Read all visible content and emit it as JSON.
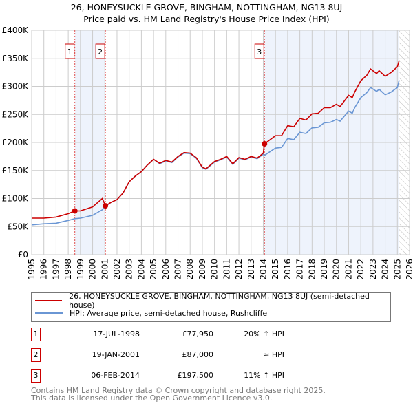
{
  "title": "26, HONEYSUCKLE GROVE, BINGHAM, NOTTINGHAM, NG13 8UJ",
  "subtitle": "Price paid vs. HM Land Registry's House Price Index (HPI)",
  "chart_data": {
    "type": "line",
    "title": "26, HONEYSUCKLE GROVE, BINGHAM, NOTTINGHAM, NG13 8UJ",
    "subtitle": "Price paid vs. HM Land Registry's House Price Index (HPI)",
    "xlim": [
      1995,
      2026
    ],
    "ylim": [
      0,
      400000
    ],
    "xticks": [
      "1995",
      "1996",
      "1997",
      "1998",
      "1999",
      "2000",
      "2001",
      "2002",
      "2003",
      "2004",
      "2005",
      "2006",
      "2007",
      "2008",
      "2009",
      "2010",
      "2011",
      "2012",
      "2013",
      "2014",
      "2015",
      "2016",
      "2017",
      "2018",
      "2019",
      "2020",
      "2021",
      "2022",
      "2023",
      "2024",
      "2025",
      "2026"
    ],
    "yticks": [
      {
        "v": 0,
        "label": "£0"
      },
      {
        "v": 50000,
        "label": "£50K"
      },
      {
        "v": 100000,
        "label": "£100K"
      },
      {
        "v": 150000,
        "label": "£150K"
      },
      {
        "v": 200000,
        "label": "£200K"
      },
      {
        "v": 250000,
        "label": "£250K"
      },
      {
        "v": 300000,
        "label": "£300K"
      },
      {
        "v": 350000,
        "label": "£350K"
      },
      {
        "v": 400000,
        "label": "£400K"
      }
    ],
    "grid": true,
    "shaded": [
      [
        1998.54,
        2001.05
      ],
      [
        2014.1,
        2025.1
      ]
    ],
    "hatched_from": 2025.1,
    "series": [
      {
        "name": "26, HONEYSUCKLE GROVE, BINGHAM, NOTTINGHAM, NG13 8UJ (semi-detached house)",
        "color": "#cc0000",
        "x": [
          1995,
          1996,
          1997,
          1998,
          1998.54,
          1999,
          2000,
          2000.8,
          2001.05,
          2001.5,
          2002,
          2002.5,
          2003,
          2003.5,
          2004,
          2004.5,
          2005,
          2005.5,
          2006,
          2006.5,
          2007,
          2007.5,
          2008,
          2008.5,
          2009,
          2009.3,
          2010,
          2010.5,
          2011,
          2011.5,
          2012,
          2012.5,
          2013,
          2013.5,
          2014,
          2014.1,
          2015,
          2015.5,
          2016,
          2016.5,
          2017,
          2017.5,
          2018,
          2018.5,
          2019,
          2019.5,
          2020,
          2020.3,
          2021,
          2021.3,
          2021.5,
          2022,
          2022.5,
          2022.8,
          2023.3,
          2023.5,
          2024,
          2024.5,
          2025,
          2025.15
        ],
        "y": [
          65000,
          65000,
          67000,
          73000,
          77950,
          78000,
          85000,
          100000,
          87000,
          93000,
          98000,
          110000,
          130000,
          140000,
          148000,
          160000,
          170000,
          163000,
          168000,
          165000,
          175000,
          182000,
          181000,
          173000,
          156000,
          153000,
          166000,
          170000,
          175000,
          162000,
          173000,
          170000,
          175000,
          172000,
          181000,
          197500,
          212000,
          212000,
          230000,
          228000,
          243000,
          240000,
          251000,
          252000,
          262000,
          262000,
          268000,
          264000,
          284000,
          280000,
          290000,
          310000,
          320000,
          331000,
          323000,
          328000,
          318000,
          325000,
          335000,
          346000
        ]
      },
      {
        "name": "HPI: Average price, semi-detached house, Rushcliffe",
        "color": "#6a96d4",
        "x": [
          1995,
          1996,
          1997,
          1998,
          1998.54,
          1999,
          2000,
          2000.8,
          2001.05,
          2001.5,
          2002,
          2002.5,
          2003,
          2003.5,
          2004,
          2004.5,
          2005,
          2005.5,
          2006,
          2006.5,
          2007,
          2007.5,
          2008,
          2008.5,
          2009,
          2009.3,
          2010,
          2010.5,
          2011,
          2011.5,
          2012,
          2012.5,
          2013,
          2013.5,
          2014,
          2014.1,
          2015,
          2015.5,
          2016,
          2016.5,
          2017,
          2017.5,
          2018,
          2018.5,
          2019,
          2019.5,
          2020,
          2020.3,
          2021,
          2021.3,
          2021.5,
          2022,
          2022.5,
          2022.8,
          2023.3,
          2023.5,
          2024,
          2024.5,
          2025,
          2025.15
        ],
        "y": [
          53000,
          55000,
          56000,
          61000,
          64000,
          65000,
          70000,
          80000,
          86000,
          93000,
          98000,
          110000,
          130000,
          140000,
          148000,
          160000,
          170000,
          162000,
          167000,
          164000,
          174000,
          181000,
          180000,
          172000,
          155000,
          152000,
          165000,
          169000,
          174000,
          161000,
          172000,
          169000,
          174000,
          171000,
          179000,
          177000,
          190000,
          191000,
          207000,
          205000,
          218000,
          216000,
          226000,
          227000,
          235000,
          236000,
          241000,
          238000,
          256000,
          252000,
          262000,
          280000,
          289000,
          298000,
          291000,
          295000,
          285000,
          290000,
          298000,
          311000
        ]
      }
    ],
    "sales": [
      {
        "label": "1",
        "x": 1998.54,
        "y": 77950
      },
      {
        "label": "2",
        "x": 2001.05,
        "y": 87000
      },
      {
        "label": "3",
        "x": 2014.1,
        "y": 197500
      }
    ]
  },
  "legend": [
    {
      "label": "26, HONEYSUCKLE GROVE, BINGHAM, NOTTINGHAM, NG13 8UJ (semi-detached house)",
      "color": "#cc0000"
    },
    {
      "label": "HPI: Average price, semi-detached house, Rushcliffe",
      "color": "#6a96d4"
    }
  ],
  "transactions": [
    {
      "num": "1",
      "date": "17-JUL-1998",
      "price": "£77,950",
      "hpi": "20% ↑ HPI"
    },
    {
      "num": "2",
      "date": "19-JAN-2001",
      "price": "£87,000",
      "hpi": "≈ HPI"
    },
    {
      "num": "3",
      "date": "06-FEB-2014",
      "price": "£197,500",
      "hpi": "11% ↑ HPI"
    }
  ],
  "footer": [
    "Contains HM Land Registry data © Crown copyright and database right 2025.",
    "This data is licensed under the Open Government Licence v3.0."
  ]
}
